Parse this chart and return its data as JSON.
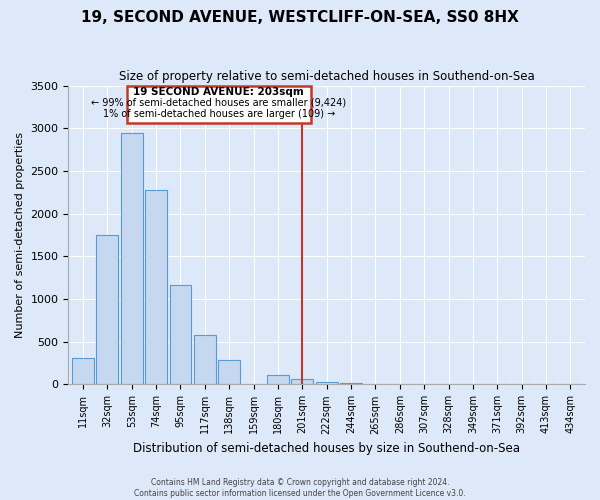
{
  "title": "19, SECOND AVENUE, WESTCLIFF-ON-SEA, SS0 8HX",
  "subtitle": "Size of property relative to semi-detached houses in Southend-on-Sea",
  "xlabel": "Distribution of semi-detached houses by size in Southend-on-Sea",
  "ylabel": "Number of semi-detached properties",
  "categories": [
    "11sqm",
    "32sqm",
    "53sqm",
    "74sqm",
    "95sqm",
    "117sqm",
    "138sqm",
    "159sqm",
    "180sqm",
    "201sqm",
    "222sqm",
    "244sqm",
    "265sqm",
    "286sqm",
    "307sqm",
    "328sqm",
    "349sqm",
    "371sqm",
    "392sqm",
    "413sqm",
    "434sqm"
  ],
  "values": [
    310,
    1750,
    2950,
    2280,
    1160,
    580,
    285,
    0,
    110,
    65,
    30,
    15,
    5,
    2,
    1,
    0,
    0,
    0,
    0,
    0,
    0
  ],
  "bar_color": "#c5d8f0",
  "bar_edge_color": "#5b9bd5",
  "vline_x_index": 9,
  "vline_color": "#c0392b",
  "annotation_title": "19 SECOND AVENUE: 203sqm",
  "annotation_line1": "← 99% of semi-detached houses are smaller (9,424)",
  "annotation_line2": "1% of semi-detached houses are larger (109) →",
  "annotation_box_color": "#c0392b",
  "ylim": [
    0,
    3500
  ],
  "yticks": [
    0,
    500,
    1000,
    1500,
    2000,
    2500,
    3000,
    3500
  ],
  "background_color": "#dde8f8",
  "plot_bg_color": "#dde8f8",
  "footer1": "Contains HM Land Registry data © Crown copyright and database right 2024.",
  "footer2": "Contains public sector information licensed under the Open Government Licence v3.0."
}
